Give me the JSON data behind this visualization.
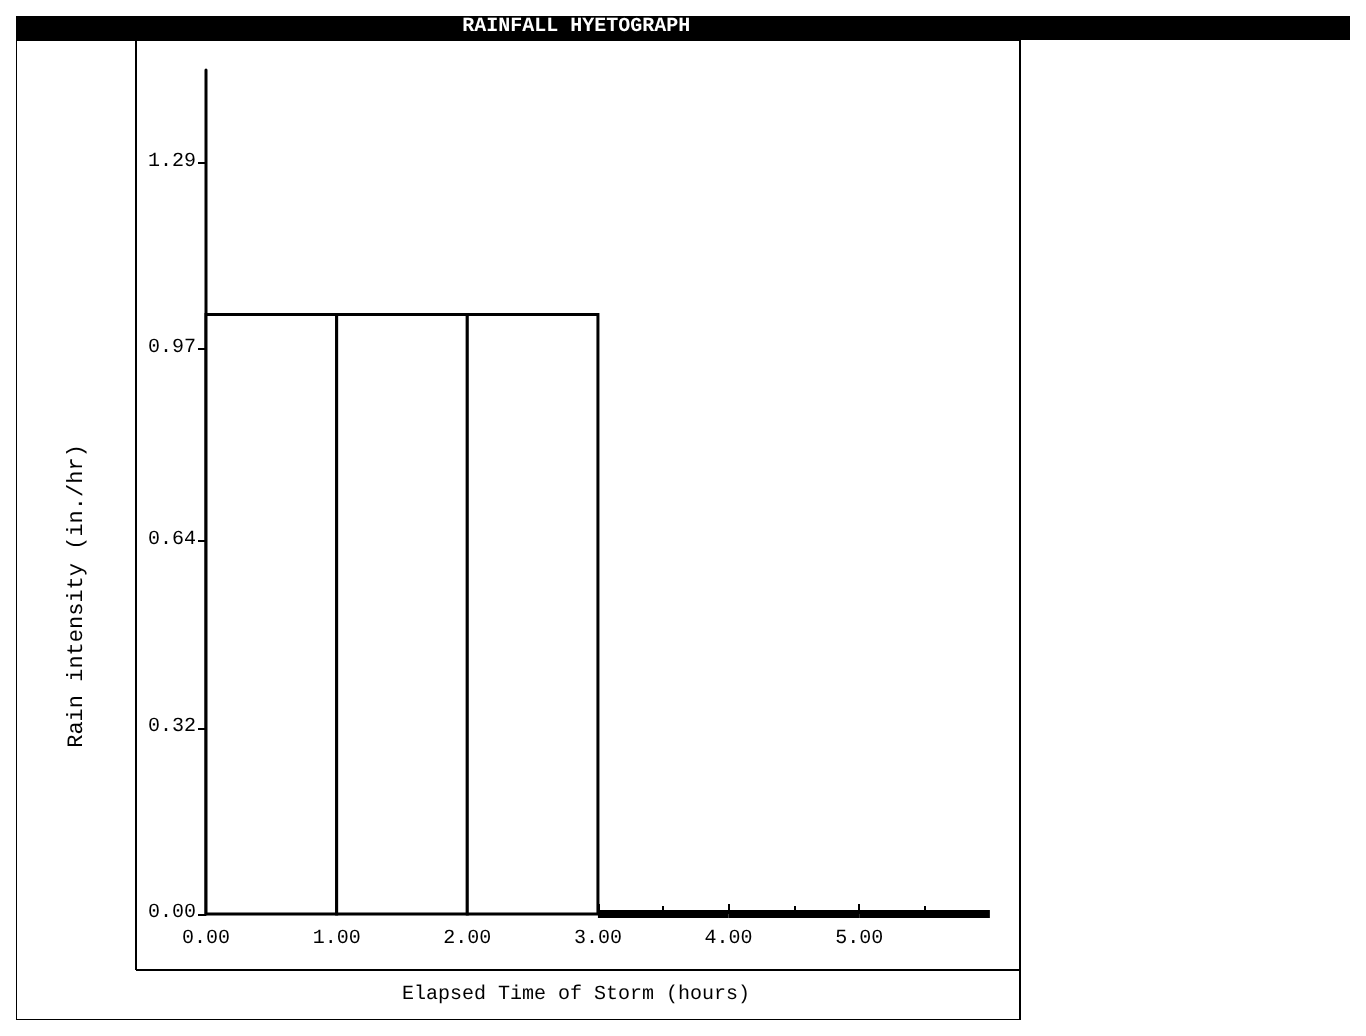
{
  "chart_data": {
    "type": "histogram",
    "title": "RAINFALL HYETOGRAPH",
    "xlabel": "Elapsed Time of Storm (hours)",
    "ylabel": "Rain intensity (in./hr)",
    "bins": [
      0,
      1,
      2,
      3,
      4,
      5,
      6
    ],
    "values": [
      1.03,
      1.03,
      1.03,
      0,
      0,
      0
    ],
    "color": "#ffffff",
    "xlim": [
      0,
      6.2
    ],
    "xticks": [
      {
        "value": 0,
        "label": "0.00"
      },
      {
        "value": 1,
        "label": "1.00"
      },
      {
        "value": 2,
        "label": "2.00"
      },
      {
        "value": 3,
        "label": "3.00"
      },
      {
        "value": 4,
        "label": "4.00"
      },
      {
        "value": 5,
        "label": "5.00"
      }
    ],
    "ylim": [
      0,
      1.45
    ],
    "yticks": [
      {
        "value": 0,
        "label": "0.00"
      },
      0.32,
      0.64,
      0.97,
      1.29
    ],
    "grid": false
  }
}
